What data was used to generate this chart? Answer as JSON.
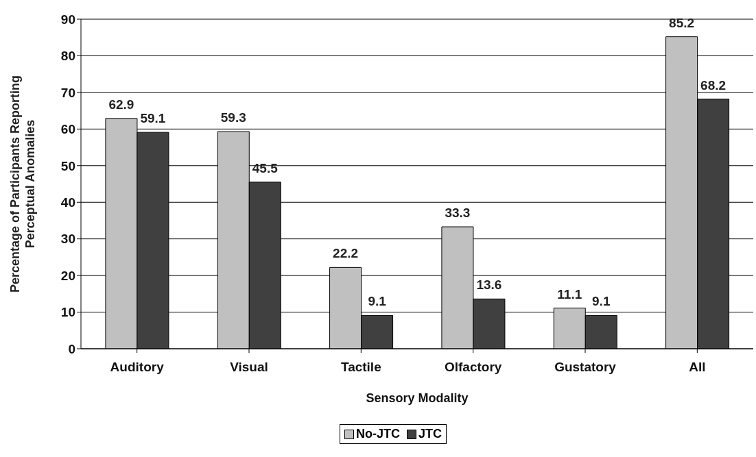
{
  "chart_data": {
    "type": "bar",
    "xlabel": "Sensory Modality",
    "ylabel": "Percentage of Participants Reporting Perceptual Anomalies",
    "categories": [
      "Auditory",
      "Visual",
      "Tactile",
      "Olfactory",
      "Gustatory",
      "All"
    ],
    "series": [
      {
        "name": "No-JTC",
        "color": "#c0c0c0",
        "values": [
          62.9,
          59.3,
          22.2,
          33.3,
          11.1,
          85.2
        ]
      },
      {
        "name": "JTC",
        "color": "#404040",
        "values": [
          59.1,
          45.5,
          9.1,
          13.6,
          9.1,
          68.2
        ]
      }
    ],
    "ylim": [
      0,
      90
    ],
    "yticks": [
      0,
      10,
      20,
      30,
      40,
      50,
      60,
      70,
      80,
      90
    ],
    "grid": "y",
    "legend": "bottom",
    "data_labels": true
  }
}
